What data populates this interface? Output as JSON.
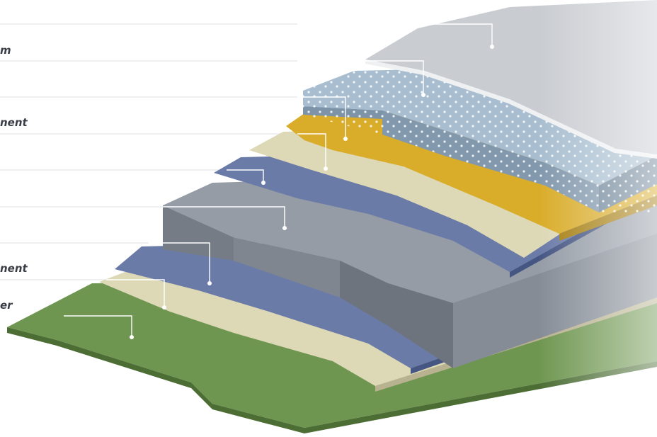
{
  "labels": [
    {
      "id": "top-layer",
      "text": "m"
    },
    {
      "id": "layer-2",
      "text": ""
    },
    {
      "id": "layer-3",
      "text": "nent"
    },
    {
      "id": "layer-4",
      "text": ""
    },
    {
      "id": "layer-5",
      "text": ""
    },
    {
      "id": "layer-6",
      "text": ""
    },
    {
      "id": "layer-7",
      "text": "nent"
    },
    {
      "id": "layer-8",
      "text": "er"
    }
  ],
  "colors": {
    "top_membrane": "#c9ccd1",
    "dotted_layer": "#a8bed0",
    "yellow_layer": "#d9ac2a",
    "beige_layer": "#ddd8b6",
    "blue_layer": "#6b7ba8",
    "gray_block": "#959ca6",
    "ground": "#6e9650",
    "leader_line": "#ffffff"
  }
}
